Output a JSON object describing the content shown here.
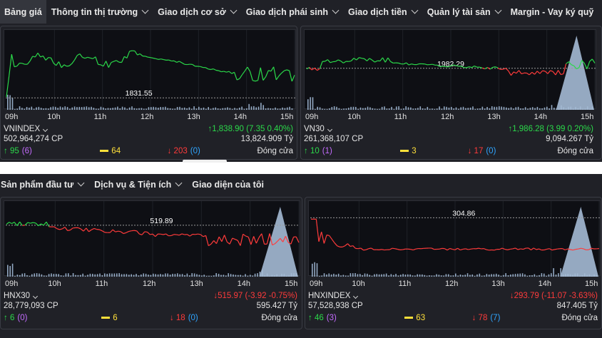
{
  "topnav": [
    {
      "label": "Bảng giá",
      "active": true,
      "chevron": false
    },
    {
      "label": "Thông tin thị trường",
      "chevron": true
    },
    {
      "label": "Giao dịch cơ sở",
      "chevron": true
    },
    {
      "label": "Giao dịch phái sinh",
      "chevron": true
    },
    {
      "label": "Giao dịch tiền",
      "chevron": true
    },
    {
      "label": "Quản lý tài sản",
      "chevron": true
    },
    {
      "label": "Margin - Vay ký quỹ",
      "chevron": false
    }
  ],
  "subnav": [
    {
      "label": "Sản phẩm đầu tư",
      "chevron": true
    },
    {
      "label": "Dịch vụ & Tiện ích",
      "chevron": true
    },
    {
      "label": "Giao diện của tôi",
      "chevron": false
    }
  ],
  "time_labels": [
    "09h",
    "10h",
    "11h",
    "12h",
    "13h",
    "14h",
    "15h"
  ],
  "panels": [
    {
      "name": "VNINDEX",
      "reference": "1831.55",
      "change_text": "1,838.90 (7.35 0.40%)",
      "direction": "up",
      "volume": "502,964,274 CP",
      "value": "13,824.909 Tỷ",
      "advances": "95",
      "ceiling": "(6)",
      "unchanged": "64",
      "declines": "203",
      "floor": "(0)",
      "status": "Đóng cửa"
    },
    {
      "name": "VN30",
      "reference": "1982.29",
      "change_text": "1,986.28 (3.99 0.20%)",
      "direction": "up",
      "volume": "261,368,107 CP",
      "value": "9,094.267 Tỷ",
      "advances": "10",
      "ceiling": "(1)",
      "unchanged": "3",
      "declines": "17",
      "floor": "(0)",
      "status": "Đóng cửa"
    },
    {
      "name": "HNX30",
      "reference": "519.89",
      "change_text": "515.97 (-3.92 -0.75%)",
      "direction": "down",
      "volume": "28,779,093 CP",
      "value": "595.427 Tỷ",
      "advances": "6",
      "ceiling": "(0)",
      "unchanged": "6",
      "declines": "18",
      "floor": "(0)",
      "status": "Đóng cửa"
    },
    {
      "name": "HNXINDEX",
      "reference": "304.86",
      "change_text": "293.79 (-11.07 -3.63%)",
      "direction": "down",
      "volume": "57,528,938 CP",
      "value": "847.405 Tỷ",
      "advances": "46",
      "ceiling": "(3)",
      "unchanged": "63",
      "declines": "78",
      "floor": "(7)",
      "status": "Đóng cửa"
    }
  ],
  "colors": {
    "up": "#2bd94a",
    "down": "#ff3b3b",
    "ceiling": "#c46cff",
    "floor": "#2fa5ff",
    "unchanged": "#ffe03a",
    "volume": "#a9c3e0"
  },
  "icons": {
    "up": "arrow-up-icon",
    "down": "arrow-down-icon",
    "unchanged": "bar-icon",
    "dropdown": "chevron-down-icon"
  }
}
